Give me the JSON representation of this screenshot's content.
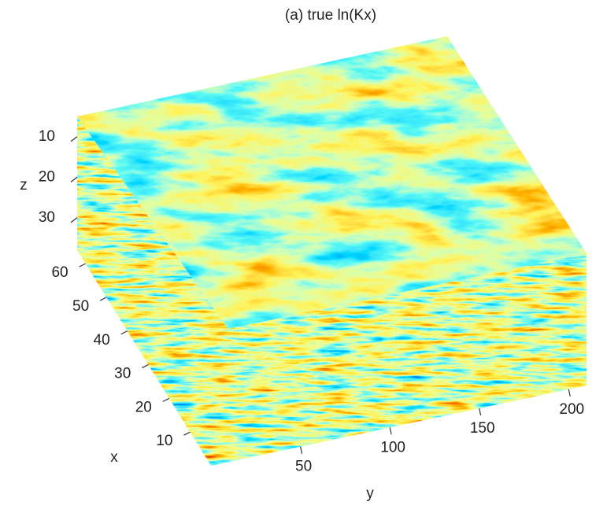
{
  "chart_data": {
    "type": "volume-slice",
    "title": "(a) true ln(Kx)",
    "xlabel": "x",
    "ylabel": "y",
    "zlabel": "z",
    "xlim": [
      0,
      64
    ],
    "xticks": [
      10,
      20,
      30,
      40,
      50,
      60
    ],
    "ylim": [
      0,
      210
    ],
    "yticks": [
      50,
      100,
      150,
      200
    ],
    "zlim": [
      5,
      38
    ],
    "zticks": [
      10,
      20,
      30
    ],
    "colormap": "jet"
  }
}
